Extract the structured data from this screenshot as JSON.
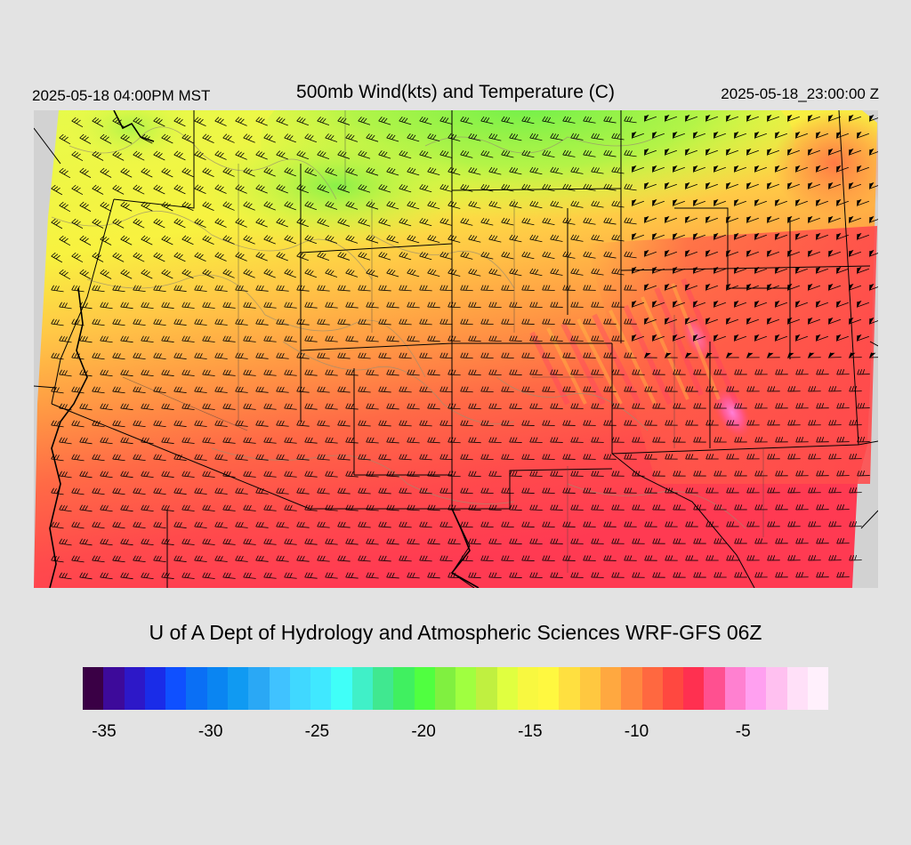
{
  "header": {
    "local_time": "2025-05-18 04:00PM MST",
    "title": "500mb Wind(kts) and Temperature (C)",
    "utc_time": "2025-05-18_23:00:00 Z"
  },
  "footer": {
    "credit": "U of A Dept of Hydrology and Atmospheric Sciences WRF-GFS 06Z"
  },
  "colorbar": {
    "colors": [
      "#3a0045",
      "#3d0a9a",
      "#2d18c8",
      "#1a2ce8",
      "#0f50ff",
      "#0a6ff5",
      "#0a85f2",
      "#109af2",
      "#2aa8f5",
      "#40c2ff",
      "#40d8ff",
      "#40e8ff",
      "#40fff8",
      "#40f0c8",
      "#40e890",
      "#40f060",
      "#50ff40",
      "#80f040",
      "#a0ff40",
      "#c0f040",
      "#e0ff40",
      "#f8f840",
      "#fff840",
      "#ffe040",
      "#ffc840",
      "#ffa840",
      "#ff8840",
      "#ff6840",
      "#ff4840",
      "#ff3050",
      "#ff5090",
      "#ff80d0",
      "#ffa0f0",
      "#ffc0f0",
      "#ffe0f8",
      "#fff0fc"
    ],
    "tick_labels": [
      "-35",
      "-30",
      "-25",
      "-20",
      "-15",
      "-10",
      "-5"
    ],
    "tick_values": [
      -35,
      -30,
      -25,
      -20,
      -15,
      -10,
      -5
    ],
    "min": -36,
    "max": -1
  },
  "map": {
    "fill_colors": {
      "cold_green": "#7df04a",
      "yellow_green": "#d8f848",
      "yellow": "#f6f640",
      "amber": "#ffc846",
      "orange": "#ff9a44",
      "red_orange": "#ff6a46",
      "red": "#ff4a4c",
      "crimson": "#ff3a52",
      "pink": "#ff5aa0",
      "magenta": "#ff80d8",
      "no_data": "#d2d2d2"
    },
    "barb_color": "#000000",
    "border_color": "#000000",
    "contour_color": "#9a8f70"
  }
}
